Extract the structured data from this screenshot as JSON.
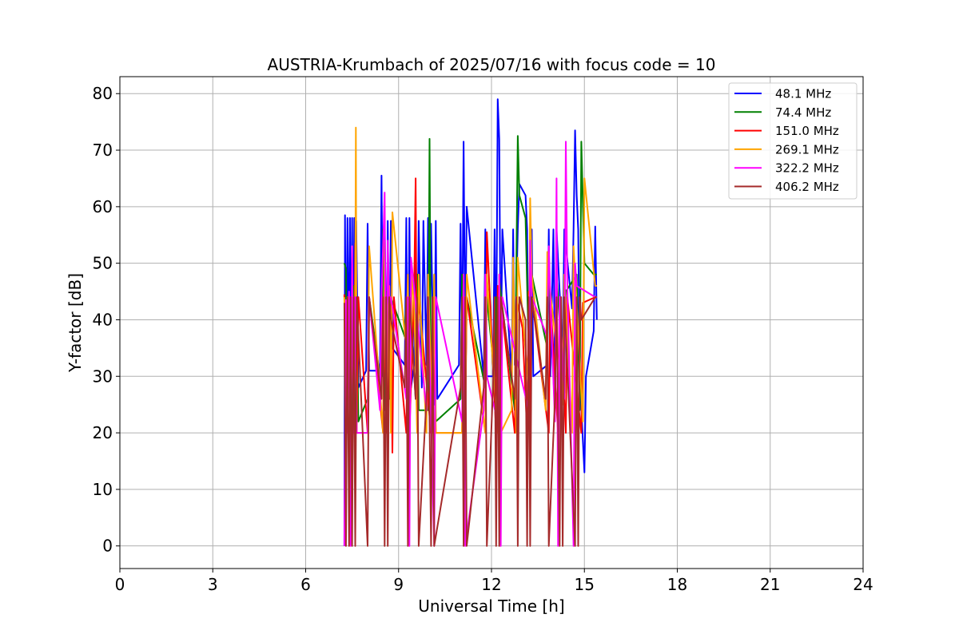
{
  "chart_data": {
    "type": "line",
    "title": "AUSTRIA-Krumbach of 2025/07/16 with focus code = 10",
    "xlabel": "Universal Time [h]",
    "ylabel": "Y-factor [dB]",
    "xlim": [
      0,
      24
    ],
    "ylim": [
      -4,
      83
    ],
    "xticks": [
      0,
      3,
      6,
      9,
      12,
      15,
      18,
      21,
      24
    ],
    "xtick_labels": [
      "0",
      "3",
      "6",
      "9",
      "12",
      "15",
      "18",
      "21",
      "24"
    ],
    "yticks": [
      0,
      10,
      20,
      30,
      40,
      50,
      60,
      70,
      80
    ],
    "ytick_labels": [
      "0",
      "10",
      "20",
      "30",
      "40",
      "50",
      "60",
      "70",
      "80"
    ],
    "grid": true,
    "legend_position": "top-right",
    "series": [
      {
        "name": " 48.1 MHz",
        "color": "#0000ff",
        "x": [
          7.25,
          7.27,
          7.3,
          7.35,
          7.4,
          7.43,
          7.47,
          7.5,
          7.53,
          7.57,
          7.6,
          7.63,
          7.7,
          7.95,
          8.0,
          8.05,
          8.4,
          8.45,
          8.5,
          8.55,
          8.62,
          8.65,
          8.7,
          8.75,
          8.8,
          9.2,
          9.25,
          9.3,
          9.35,
          9.4,
          9.5,
          9.55,
          9.6,
          9.65,
          9.75,
          9.8,
          9.9,
          9.95,
          10.0,
          10.05,
          10.15,
          10.2,
          10.25,
          10.95,
          11.0,
          11.05,
          11.1,
          11.15,
          11.2,
          11.75,
          11.8,
          11.85,
          12.05,
          12.1,
          12.15,
          12.2,
          12.25,
          12.3,
          12.35,
          12.65,
          12.7,
          12.75,
          12.85,
          12.9,
          13.1,
          13.15,
          13.2,
          13.3,
          13.35,
          13.8,
          13.85,
          13.9,
          14.0,
          14.05,
          14.1,
          14.3,
          14.35,
          14.6,
          14.65,
          14.7,
          14.75,
          14.8,
          14.85,
          15.0,
          15.05,
          15.3,
          15.35,
          15.4
        ],
        "y": [
          0,
          58.5,
          28,
          58,
          30,
          58,
          26,
          58,
          28,
          58,
          28,
          57.5,
          28,
          31,
          57,
          31,
          31,
          65.5,
          30,
          57.5,
          30,
          57.5,
          30,
          57.5,
          35,
          32,
          58,
          25,
          58,
          28,
          32,
          57,
          28,
          57.5,
          28,
          57.5,
          32,
          58,
          28,
          57,
          25,
          57.5,
          26,
          32,
          57,
          32,
          71.5,
          35,
          60,
          30,
          56,
          30,
          30,
          56,
          30,
          79,
          72,
          32,
          56,
          30,
          56,
          32,
          56,
          64,
          62,
          56,
          30,
          56,
          30,
          32,
          56,
          30,
          56,
          30,
          56,
          34,
          56,
          42,
          56,
          73.5,
          62,
          56,
          30,
          13,
          30,
          38,
          56.5,
          40
        ]
      },
      {
        "name": " 74.4 MHz",
        "color": "#008000",
        "x": [
          7.25,
          7.3,
          7.35,
          7.4,
          7.5,
          7.55,
          7.6,
          7.65,
          7.7,
          8.0,
          8.05,
          8.45,
          8.5,
          8.55,
          8.6,
          8.7,
          8.75,
          9.2,
          9.25,
          9.3,
          9.35,
          9.55,
          9.6,
          9.65,
          9.95,
          10.0,
          10.05,
          10.15,
          10.2,
          11.0,
          11.05,
          11.15,
          11.2,
          11.8,
          11.85,
          12.1,
          12.15,
          12.2,
          12.25,
          12.75,
          12.85,
          12.9,
          13.1,
          13.15,
          13.25,
          13.3,
          13.8,
          13.85,
          14.05,
          14.1,
          14.35,
          14.4,
          14.75,
          14.85,
          14.9,
          15.0,
          15.3,
          15.4
        ],
        "y": [
          50,
          49,
          22,
          44,
          22,
          46,
          22,
          44,
          22,
          26,
          44,
          28,
          56,
          24,
          45,
          26,
          44,
          37,
          44,
          23,
          44,
          26,
          48,
          24,
          24,
          72,
          22,
          48,
          22,
          26,
          48,
          24,
          44,
          28,
          44,
          30,
          44,
          22,
          47,
          24,
          72.5,
          62,
          58,
          46,
          24,
          48,
          35,
          48,
          24,
          48,
          27,
          45,
          48,
          24,
          71.5,
          50,
          48,
          48
        ]
      },
      {
        "name": " 151.0 MHz",
        "color": "#ff0000",
        "x": [
          7.25,
          7.3,
          7.35,
          7.45,
          7.5,
          7.55,
          7.6,
          7.65,
          7.7,
          8.0,
          8.05,
          8.5,
          8.55,
          8.6,
          8.75,
          8.8,
          8.85,
          9.25,
          9.3,
          9.35,
          9.5,
          9.55,
          9.6,
          9.65,
          10.05,
          10.1,
          10.2,
          11.05,
          11.1,
          11.15,
          11.2,
          11.8,
          11.85,
          12.15,
          12.2,
          12.25,
          12.3,
          12.75,
          12.8,
          13.0,
          13.15,
          13.2,
          13.25,
          13.3,
          13.85,
          13.9,
          14.15,
          14.2,
          14.4,
          14.45,
          14.9,
          14.95,
          15.35,
          15.4
        ],
        "y": [
          44.5,
          20,
          44,
          20,
          44,
          20,
          53.5,
          20,
          44,
          20,
          44,
          20,
          44,
          20,
          44,
          16.5,
          44,
          20,
          44,
          20,
          44,
          65,
          20,
          44,
          20,
          44,
          20,
          20,
          45,
          20,
          44,
          20,
          55.5,
          20,
          46,
          20,
          44,
          20,
          44,
          38.5,
          20,
          45,
          20,
          44,
          20,
          44,
          20,
          44,
          20,
          44,
          20,
          43,
          44,
          44
        ]
      },
      {
        "name": " 269.1 MHz",
        "color": "#ffa500",
        "x": [
          7.25,
          7.3,
          7.35,
          7.45,
          7.5,
          7.55,
          7.6,
          7.62,
          7.65,
          8.0,
          8.05,
          8.5,
          8.55,
          8.6,
          8.7,
          8.75,
          8.8,
          9.25,
          9.3,
          9.35,
          9.45,
          9.5,
          9.6,
          9.65,
          9.9,
          9.95,
          10.1,
          10.15,
          10.2,
          11.05,
          11.1,
          11.15,
          11.2,
          11.8,
          11.85,
          12.2,
          12.25,
          12.3,
          12.65,
          12.7,
          12.8,
          12.85,
          13.2,
          13.25,
          13.3,
          13.75,
          13.8,
          13.9,
          14.3,
          14.35,
          14.6,
          14.65,
          14.95,
          15.0,
          15.35,
          15.4
        ],
        "y": [
          44,
          20,
          44,
          20,
          46,
          20,
          44,
          74,
          20,
          20,
          53,
          20,
          54,
          24,
          46,
          20,
          59,
          35,
          48,
          20,
          48,
          44,
          20,
          48,
          20,
          48,
          20,
          48,
          20,
          20,
          48,
          20,
          48,
          20,
          48,
          20,
          48,
          20,
          24,
          51,
          20,
          51,
          28,
          61.5,
          48,
          24,
          52,
          45,
          25,
          48,
          20,
          53,
          22,
          65,
          46,
          46
        ]
      },
      {
        "name": " 322.2 MHz",
        "color": "#ff00ff",
        "x": [
          7.25,
          7.3,
          7.35,
          7.4,
          7.45,
          7.5,
          7.55,
          7.6,
          7.65,
          8.0,
          8.05,
          8.4,
          8.45,
          8.55,
          8.6,
          8.65,
          8.7,
          8.75,
          9.25,
          9.3,
          9.35,
          9.4,
          9.9,
          9.95,
          10.15,
          10.2,
          11.05,
          11.1,
          11.15,
          11.75,
          11.8,
          11.85,
          12.2,
          12.25,
          12.3,
          12.35,
          13.2,
          13.25,
          13.3,
          13.8,
          13.85,
          13.9,
          14.05,
          14.1,
          14.15,
          14.2,
          14.35,
          14.4,
          14.45,
          14.65,
          14.7,
          14.75,
          15.35,
          15.4
        ],
        "y": [
          0,
          43.5,
          20,
          45,
          0,
          53,
          20,
          44,
          20,
          20,
          44,
          24,
          44,
          62.5,
          22,
          54,
          42,
          44,
          26,
          44,
          0,
          51,
          24,
          44,
          0,
          44,
          22,
          48,
          0,
          24,
          48,
          30,
          22,
          48,
          0,
          44,
          24,
          54,
          44,
          37,
          53,
          44,
          22,
          65,
          0,
          44,
          26,
          71.5,
          46,
          0,
          50,
          46,
          44,
          44
        ]
      },
      {
        "name": " 406.2 MHz",
        "color": "#a52a2a",
        "x": [
          7.25,
          7.3,
          7.35,
          7.4,
          7.45,
          7.5,
          7.55,
          7.6,
          7.65,
          8.0,
          8.05,
          8.45,
          8.5,
          8.55,
          8.6,
          8.65,
          8.7,
          8.75,
          9.2,
          9.25,
          9.3,
          9.35,
          9.55,
          9.6,
          9.65,
          9.9,
          9.95,
          10.05,
          10.1,
          10.15,
          11.0,
          11.05,
          11.1,
          11.15,
          11.2,
          11.75,
          11.8,
          11.85,
          12.05,
          12.1,
          12.15,
          12.2,
          12.25,
          12.3,
          12.75,
          12.8,
          12.85,
          12.9,
          13.1,
          13.15,
          13.2,
          13.25,
          13.3,
          13.75,
          13.8,
          13.85,
          14.05,
          14.1,
          14.2,
          14.25,
          14.3,
          14.35,
          14.7,
          14.75,
          14.8,
          14.85,
          14.9,
          15.35,
          15.4
        ],
        "y": [
          43,
          0,
          44,
          0,
          44,
          0,
          44,
          0,
          44,
          0,
          44,
          26,
          44,
          0,
          44,
          0,
          44,
          40,
          28,
          44,
          0,
          44,
          26,
          44,
          0,
          26,
          44,
          0,
          44,
          0,
          28,
          44,
          0,
          44,
          0,
          28,
          44,
          0,
          28,
          44,
          0,
          44,
          0,
          44,
          26,
          44,
          0,
          44,
          40,
          0,
          44,
          0,
          44,
          26,
          44,
          0,
          26,
          44,
          0,
          44,
          0,
          44,
          0,
          44,
          0,
          44,
          40,
          44,
          44
        ]
      }
    ]
  }
}
